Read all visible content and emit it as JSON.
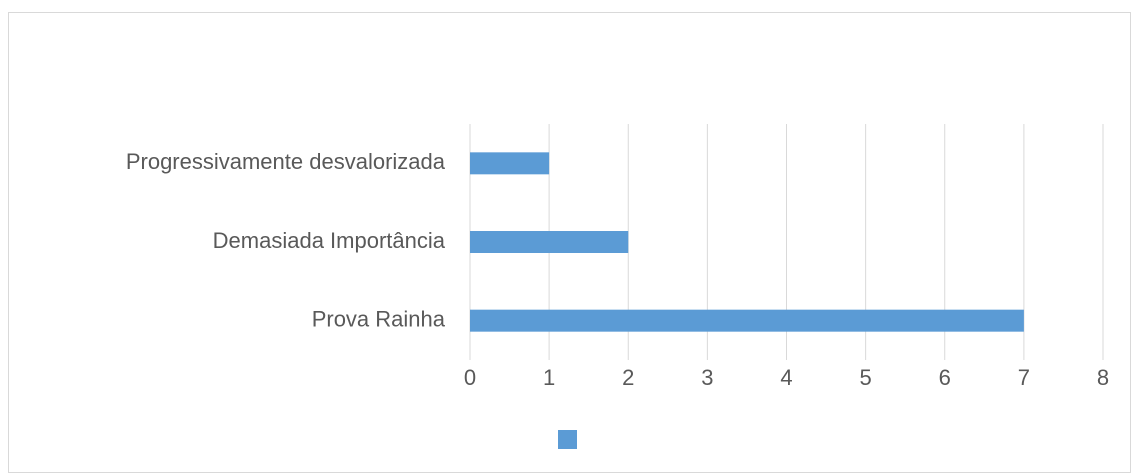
{
  "chart_data": {
    "type": "bar",
    "orientation": "horizontal",
    "categories": [
      "Prova Rainha",
      "Demasiada Importância",
      "Progressivamente desvalorizada"
    ],
    "values": [
      7,
      2,
      1
    ],
    "color": "#5b9bd5",
    "xlim": [
      0,
      8
    ],
    "xticks": [
      0,
      1,
      2,
      3,
      4,
      5,
      6,
      7,
      8
    ],
    "grid": true,
    "legend": "bottom"
  }
}
